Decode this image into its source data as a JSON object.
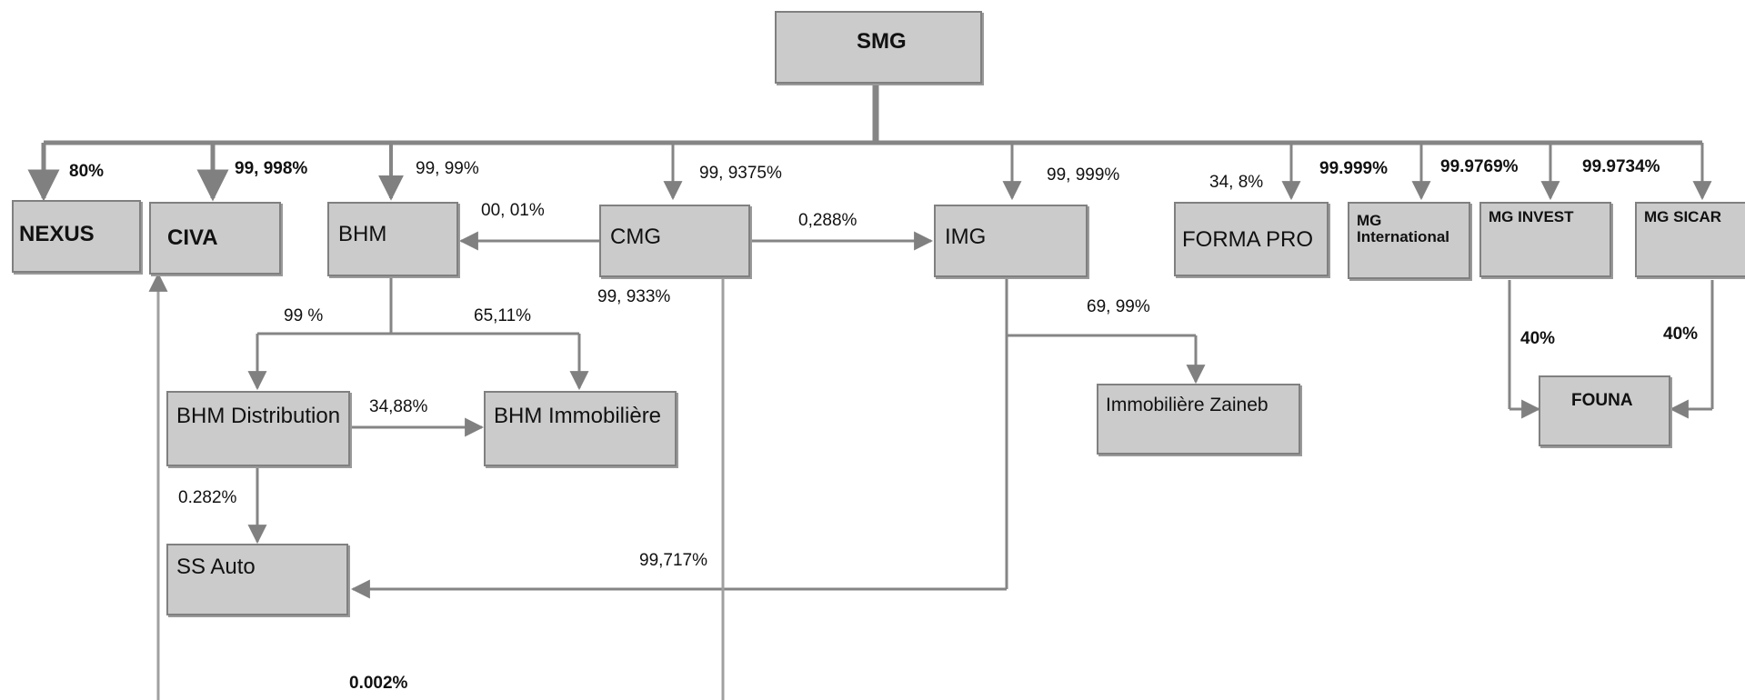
{
  "nodes": {
    "smg": "SMG",
    "nexus": "NEXUS",
    "civa": "CIVA",
    "bhm": "BHM",
    "cmg": "CMG",
    "img": "IMG",
    "forma_pro": "FORMA PRO",
    "mg_international": "MG International",
    "mg_invest": "MG INVEST",
    "mg_sicar": "MG SICAR",
    "bhm_distribution": "BHM Distribution",
    "bhm_immobiliere": "BHM Immobilière",
    "immobiliere_zaineb": "Immobilière Zaineb",
    "ss_auto": "SS Auto",
    "founa": "FOUNA"
  },
  "percentages": {
    "smg_nexus": "80%",
    "smg_civa": "99, 998%",
    "smg_bhm": "99, 99%",
    "smg_cmg": "99, 9375%",
    "smg_img": "99, 999%",
    "smg_forma_pro": "34, 8%",
    "smg_mg_international": "99.999%",
    "smg_mg_invest": "99.9769%",
    "smg_mg_sicar": "99.9734%",
    "cmg_bhm": "00, 01%",
    "cmg_img": "0,288%",
    "cmg_below": "99, 933%",
    "bhm_bhm_distribution": "99 %",
    "bhm_bhm_immobiliere": "65,11%",
    "bhm_distribution_bhm_immobiliere": "34,88%",
    "img_immobiliere_zaineb": "69, 99%",
    "bhm_distribution_ss_auto": "0.282%",
    "img_ss_auto": "99,717%",
    "mg_invest_founa": "40%",
    "mg_sicar_founa": "40%",
    "bottom_note": "0.002%"
  }
}
